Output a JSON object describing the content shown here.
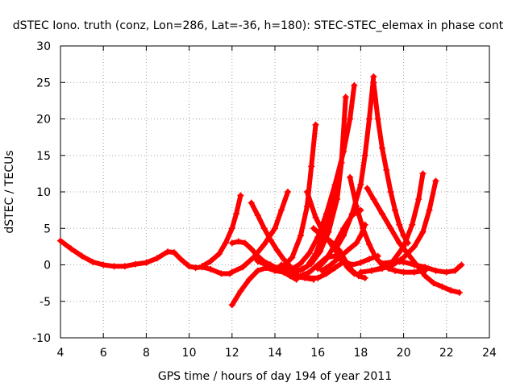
{
  "chart_data": {
    "type": "scatter",
    "title": "dSTEC Iono. truth (conz, Lon=286, Lat=-36, h=180): STEC-STEC_elemax in phase cont",
    "xlabel": "GPS time / hours of day 194 of year 2011",
    "ylabel": "dSTEC  / TECUs",
    "xlim": [
      4,
      24
    ],
    "ylim": [
      -10,
      30
    ],
    "xticks": [
      4,
      6,
      8,
      10,
      12,
      14,
      16,
      18,
      20,
      22,
      24
    ],
    "yticks": [
      -10,
      -5,
      0,
      5,
      10,
      15,
      20,
      25,
      30
    ],
    "grid": true,
    "marker": "plus",
    "color": "#ff0000",
    "series": [
      {
        "x": [
          4.0,
          4.5,
          5.0,
          5.5,
          6.0,
          6.5,
          7.0,
          7.5,
          8.0,
          8.5,
          9.0,
          9.3,
          9.6,
          10.0,
          10.3,
          10.6,
          11.0,
          11.5,
          11.9
        ],
        "y": [
          3.3,
          2.2,
          1.2,
          0.4,
          0.0,
          -0.2,
          -0.2,
          0.1,
          0.3,
          0.9,
          1.8,
          1.7,
          0.8,
          -0.2,
          -0.4,
          -0.3,
          -0.6,
          -1.2,
          -1.2
        ]
      },
      {
        "x": [
          10.6,
          11.0,
          11.4,
          11.7,
          12.0,
          12.2,
          12.4
        ],
        "y": [
          -0.2,
          0.5,
          1.5,
          3.0,
          5.0,
          7.0,
          9.5
        ]
      },
      {
        "x": [
          12.0,
          12.3,
          12.6,
          12.9,
          13.2,
          13.5,
          13.8,
          14.1,
          14.4,
          14.7,
          15.0
        ],
        "y": [
          3.0,
          3.2,
          3.0,
          2.2,
          1.2,
          0.4,
          -0.2,
          -0.6,
          -1.0,
          -1.5,
          -2.0
        ]
      },
      {
        "x": [
          12.0,
          12.4,
          12.8,
          13.2,
          13.6,
          14.0,
          14.4,
          14.8,
          15.2,
          15.6,
          16.0,
          16.4,
          16.8,
          17.2
        ],
        "y": [
          -5.5,
          -3.6,
          -2.0,
          -0.8,
          -0.4,
          -0.8,
          -1.0,
          -1.2,
          -1.6,
          -1.8,
          -1.8,
          -1.2,
          -0.4,
          0.4
        ]
      },
      {
        "x": [
          12.0,
          12.5,
          13.0,
          13.5,
          14.0,
          14.3,
          14.6
        ],
        "y": [
          -1.0,
          -0.3,
          1.0,
          2.8,
          5.0,
          7.5,
          10.0
        ]
      },
      {
        "x": [
          12.9,
          13.2,
          13.5,
          13.8,
          14.1,
          14.4,
          14.7,
          15.0
        ],
        "y": [
          8.5,
          6.8,
          5.0,
          3.4,
          2.0,
          0.8,
          -0.2,
          -1.0
        ]
      },
      {
        "x": [
          13.2,
          13.6,
          14.0,
          14.4,
          14.8,
          15.2,
          15.5,
          15.7,
          15.9
        ],
        "y": [
          0.5,
          0.0,
          -0.4,
          -0.2,
          1.0,
          4.0,
          8.0,
          13.5,
          19.2
        ]
      },
      {
        "x": [
          13.0,
          13.4,
          13.8,
          14.2,
          14.6,
          15.0,
          15.4,
          15.8
        ],
        "y": [
          1.0,
          0.6,
          0.0,
          -0.6,
          -1.2,
          -1.6,
          -1.8,
          -2.0
        ]
      },
      {
        "x": [
          14.0,
          14.4,
          14.8,
          15.2,
          15.6,
          16.0,
          16.4,
          16.8,
          17.2,
          17.5,
          17.7
        ],
        "y": [
          -0.6,
          -0.8,
          -0.6,
          0.2,
          1.6,
          3.8,
          7.0,
          11.0,
          15.5,
          20.0,
          24.6
        ]
      },
      {
        "x": [
          14.3,
          14.7,
          15.1,
          15.5,
          15.9,
          16.3,
          16.7,
          17.1
        ],
        "y": [
          0.0,
          -0.4,
          -0.8,
          -0.2,
          1.5,
          4.5,
          9.0,
          14.0
        ]
      },
      {
        "x": [
          14.9,
          15.3,
          15.7,
          16.1,
          16.5,
          16.9,
          17.1,
          17.3
        ],
        "y": [
          -1.0,
          -0.6,
          0.2,
          1.8,
          4.5,
          9.0,
          14.0,
          23.0
        ]
      },
      {
        "x": [
          15.2,
          15.6,
          16.0,
          16.4,
          16.8,
          17.2,
          17.6,
          18.0,
          18.4,
          18.8
        ],
        "y": [
          -1.5,
          -1.0,
          0.0,
          1.0,
          1.2,
          0.5,
          0.0,
          0.3,
          0.8,
          1.2
        ]
      },
      {
        "x": [
          15.5,
          15.9,
          16.3,
          16.7,
          17.1,
          17.4,
          17.7
        ],
        "y": [
          10.0,
          6.5,
          4.2,
          2.5,
          0.8,
          -0.4,
          -1.2
        ]
      },
      {
        "x": [
          15.8,
          16.2,
          16.6,
          17.0,
          17.3,
          17.6,
          17.9,
          18.2
        ],
        "y": [
          5.0,
          4.0,
          3.2,
          2.0,
          0.5,
          -0.8,
          -1.5,
          -1.8
        ]
      },
      {
        "x": [
          16.0,
          16.4,
          16.8,
          17.2,
          17.6,
          18.0
        ],
        "y": [
          -0.5,
          0.8,
          2.8,
          5.0,
          6.8,
          7.5
        ]
      },
      {
        "x": [
          16.2,
          16.6,
          17.0,
          17.4,
          17.8,
          18.0,
          18.2
        ],
        "y": [
          -0.8,
          0.0,
          1.0,
          2.0,
          3.0,
          4.0,
          5.5
        ]
      },
      {
        "x": [
          17.5,
          17.8,
          18.1,
          18.4,
          18.7,
          19.0,
          19.3,
          19.6,
          20.0,
          20.5,
          21.0
        ],
        "y": [
          12.0,
          8.0,
          5.0,
          2.8,
          1.0,
          0.0,
          -0.5,
          -0.8,
          -1.0,
          -1.0,
          -0.8
        ]
      },
      {
        "x": [
          16.8,
          17.2,
          17.6,
          18.0,
          18.2,
          18.4,
          18.6
        ],
        "y": [
          2.0,
          4.0,
          7.0,
          11.0,
          15.0,
          20.0,
          25.8
        ]
      },
      {
        "x": [
          18.6,
          18.8,
          19.0,
          19.2,
          19.4,
          19.6,
          19.8,
          20.0,
          20.2
        ],
        "y": [
          25.0,
          20.0,
          16.0,
          13.0,
          10.0,
          7.5,
          5.5,
          4.0,
          3.0
        ]
      },
      {
        "x": [
          18.3,
          18.6,
          19.0,
          19.4,
          19.8,
          20.2,
          20.6,
          21.0,
          21.4,
          21.8,
          22.2,
          22.6
        ],
        "y": [
          10.5,
          9.0,
          7.0,
          5.0,
          3.0,
          1.5,
          0.0,
          -1.5,
          -2.5,
          -3.0,
          -3.5,
          -3.8
        ]
      },
      {
        "x": [
          18.0,
          18.5,
          19.0,
          19.5,
          20.0,
          20.4,
          20.7,
          20.9
        ],
        "y": [
          -1.0,
          -0.8,
          -0.4,
          0.5,
          2.5,
          5.5,
          9.0,
          12.5
        ]
      },
      {
        "x": [
          18.5,
          19.0,
          19.5,
          20.0,
          20.5,
          20.9,
          21.2,
          21.5
        ],
        "y": [
          -0.8,
          -0.5,
          0.0,
          1.0,
          2.5,
          4.5,
          7.5,
          11.5
        ]
      },
      {
        "x": [
          19.0,
          19.5,
          20.0,
          20.5,
          21.0,
          21.5,
          22.0,
          22.4,
          22.7
        ],
        "y": [
          0.2,
          0.4,
          0.4,
          0.0,
          -0.3,
          -0.8,
          -1.0,
          -0.8,
          0.0
        ]
      }
    ]
  }
}
